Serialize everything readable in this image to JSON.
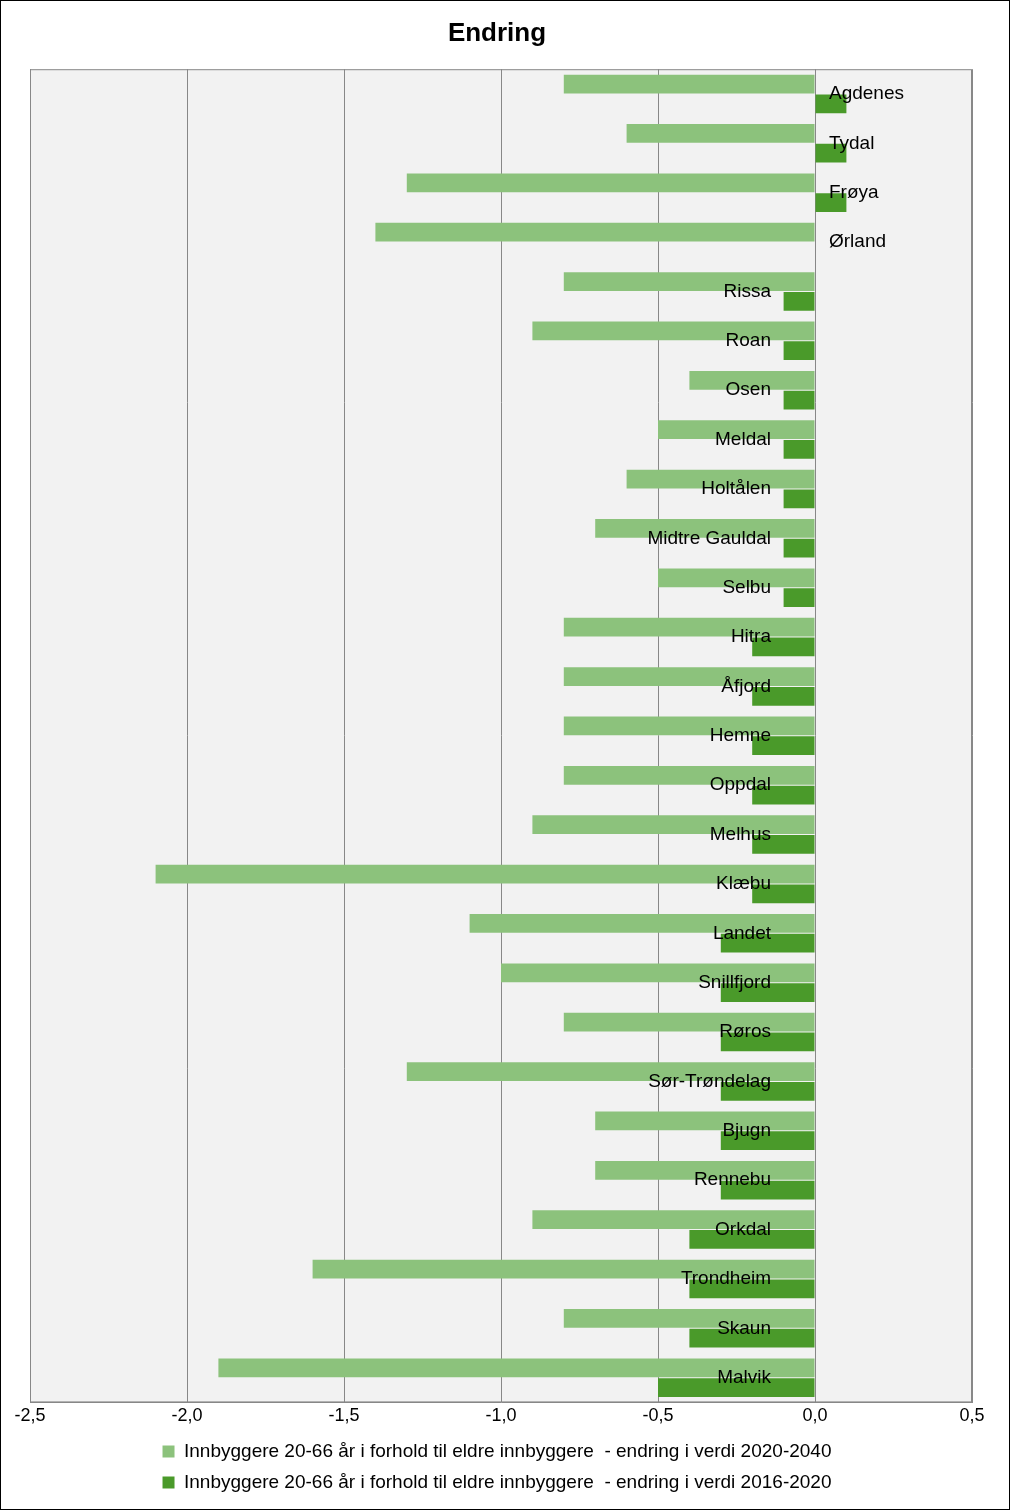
{
  "chart_data": {
    "type": "bar",
    "title": "Endring",
    "orientation": "horizontal",
    "categories": [
      "Agdenes",
      "Tydal",
      "Frøya",
      "Ørland",
      "Rissa",
      "Roan",
      "Osen",
      "Meldal",
      "Holtålen",
      "Midtre Gauldal",
      "Selbu",
      "Hitra",
      "Åfjord",
      "Hemne",
      "Oppdal",
      "Melhus",
      "Klæbu",
      "Landet",
      "Snillfjord",
      "Røros",
      "Sør-Trøndelag",
      "Bjugn",
      "Rennebu",
      "Orkdal",
      "Trondheim",
      "Skaun",
      "Malvik"
    ],
    "series": [
      {
        "name": "Innbyggere 20-66 år i forhold til eldre innbyggere  - endring i verdi 2020-2040",
        "color": "#8cc27c",
        "values": [
          -0.8,
          -0.6,
          -1.3,
          -1.4,
          -0.8,
          -0.9,
          -0.4,
          -0.5,
          -0.6,
          -0.7,
          -0.5,
          -0.8,
          -0.8,
          -0.8,
          -0.8,
          -0.9,
          -2.1,
          -1.1,
          -1.0,
          -0.8,
          -1.3,
          -0.7,
          -0.7,
          -0.9,
          -1.6,
          -0.8,
          -1.9
        ]
      },
      {
        "name": "Innbyggere 20-66 år i forhold til eldre innbyggere  - endring i verdi 2016-2020",
        "color": "#4a9a2a",
        "values": [
          0.1,
          0.1,
          0.1,
          0.0,
          -0.1,
          -0.1,
          -0.1,
          -0.1,
          -0.1,
          -0.1,
          -0.1,
          -0.2,
          -0.2,
          -0.2,
          -0.2,
          -0.2,
          -0.2,
          -0.3,
          -0.3,
          -0.3,
          -0.3,
          -0.3,
          -0.3,
          -0.4,
          -0.4,
          -0.4,
          -0.5
        ]
      }
    ],
    "xlim": [
      -2.5,
      0.5
    ],
    "xticks": [
      {
        "value": -2.5,
        "label": "-2,5"
      },
      {
        "value": -2.0,
        "label": "-2,0"
      },
      {
        "value": -1.5,
        "label": "-1,5"
      },
      {
        "value": -1.0,
        "label": "-1,0"
      },
      {
        "value": -0.5,
        "label": "-0,5"
      },
      {
        "value": 0.0,
        "label": "0,0"
      },
      {
        "value": 0.5,
        "label": "0,5"
      }
    ],
    "grid": true,
    "legend": "bottom",
    "tick_labels": "x"
  }
}
